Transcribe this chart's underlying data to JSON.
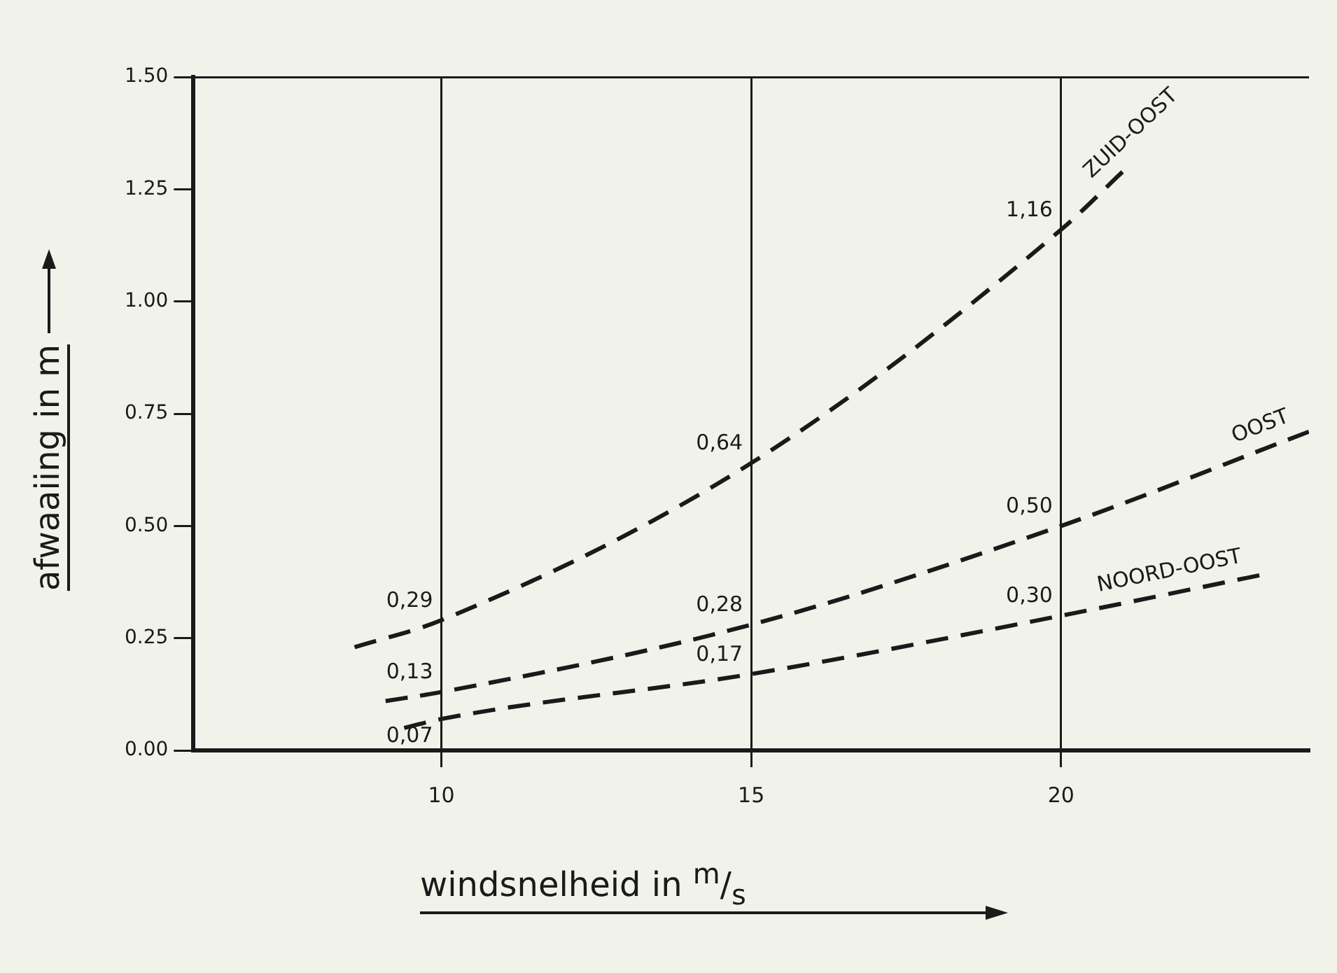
{
  "chart_data": {
    "type": "line",
    "xlabel": "windsnelheid in $^{m}$/$_{s}$",
    "ylabel": "afwaaiing in m",
    "xlim": [
      6,
      24
    ],
    "xticks": [
      10,
      15,
      20
    ],
    "ylim": [
      0,
      1.5
    ],
    "yticks": [
      {
        "value": 0,
        "label": "0.00"
      },
      {
        "value": 0.25,
        "label": "0.25"
      },
      {
        "value": 0.5,
        "label": "0.50"
      },
      {
        "value": 0.75,
        "label": "0.75"
      },
      {
        "value": 1,
        "label": "1.00"
      },
      {
        "value": 1.25,
        "label": "1.25"
      },
      {
        "value": 1.5,
        "label": "1.50"
      }
    ],
    "grid": "x",
    "legend": false,
    "marker": "none",
    "line_style": "dashed",
    "series": [
      {
        "name": "ZUID-OOST",
        "color": "#1a1a1a",
        "x": [
          8.6,
          10,
          15,
          20,
          21
        ],
        "values": [
          0.23,
          0.29,
          0.64,
          1.16,
          1.29
        ],
        "value_labels": [
          null,
          "0,29",
          "0,64",
          "1,16",
          null
        ]
      },
      {
        "name": "OOST",
        "color": "#1a1a1a",
        "x": [
          9.1,
          10,
          15,
          20,
          24
        ],
        "values": [
          0.11,
          0.13,
          0.28,
          0.5,
          0.71
        ],
        "value_labels": [
          null,
          "0,13",
          "0,28",
          "0,50",
          null
        ]
      },
      {
        "name": "NOORD-OOST",
        "color": "#1a1a1a",
        "x": [
          9.4,
          10,
          15,
          20,
          23.2
        ],
        "values": [
          0.05,
          0.07,
          0.17,
          0.3,
          0.39
        ],
        "value_labels": [
          null,
          "0,07",
          "0,17",
          "0,30",
          null
        ]
      }
    ]
  }
}
